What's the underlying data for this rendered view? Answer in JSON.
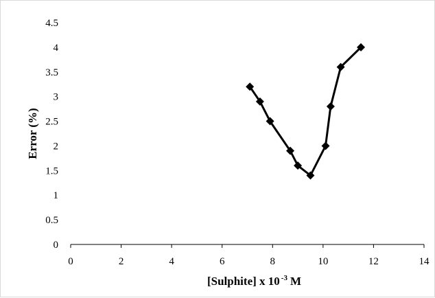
{
  "chart_data": {
    "type": "line",
    "title": "",
    "xlabel": "[Sulphite] x 10",
    "xlabel_exponent": "-3",
    "xlabel_unit": "M",
    "ylabel": "Error (%)",
    "xlim": [
      0,
      14
    ],
    "ylim": [
      0,
      4.5
    ],
    "xticks": [
      "0",
      "2",
      "4",
      "6",
      "8",
      "10",
      "12",
      "14"
    ],
    "yticks": [
      "0",
      "0.5",
      "1",
      "1.5",
      "2",
      "2.5",
      "3",
      "3.5",
      "4",
      "4.5"
    ],
    "grid": false,
    "legend": "none",
    "series": [
      {
        "color": "#000000",
        "marker": "diamond",
        "x": [
          7.1,
          7.5,
          7.9,
          8.7,
          9.0,
          9.5,
          10.1,
          10.3,
          10.7,
          11.5
        ],
        "y": [
          3.2,
          2.9,
          2.5,
          1.9,
          1.6,
          1.4,
          2.0,
          2.8,
          3.6,
          4.0
        ]
      }
    ]
  }
}
